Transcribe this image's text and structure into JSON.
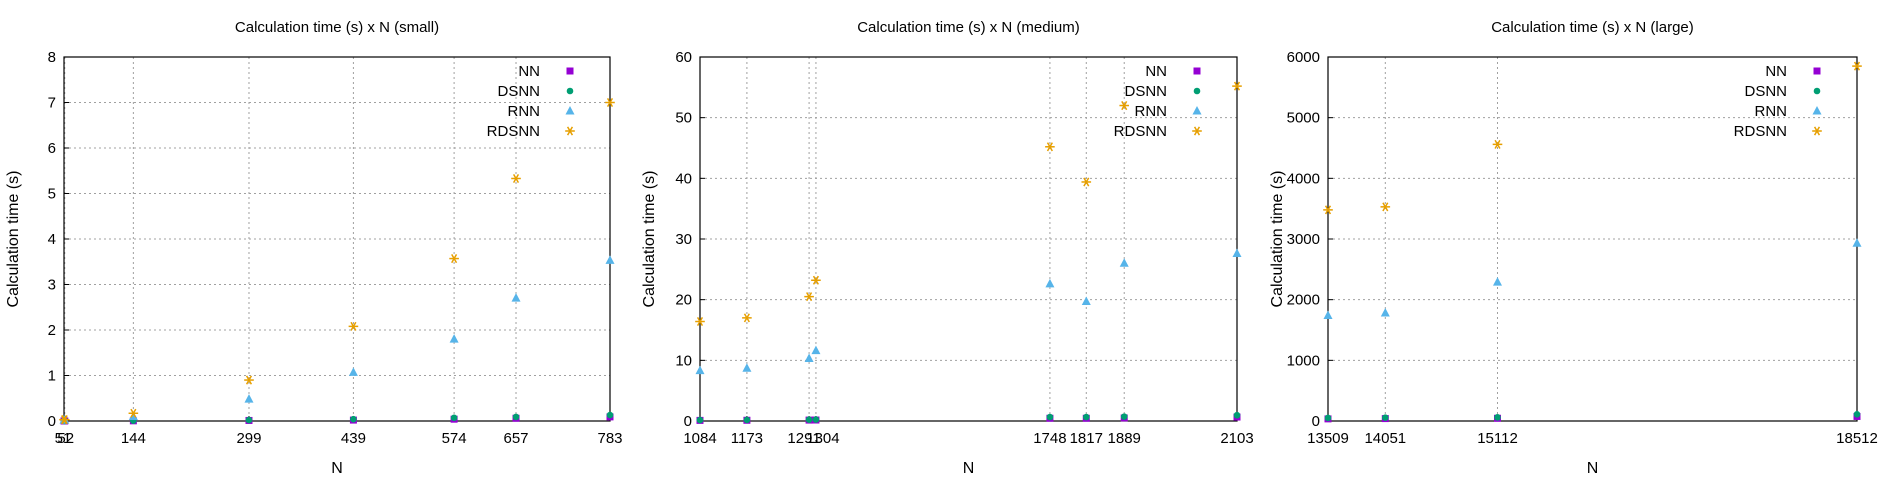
{
  "chart_data": [
    {
      "type": "scatter",
      "title": "Calculation time (s) x N (small)",
      "xlabel": "N",
      "ylabel": "Calculation time (s)",
      "ylim": [
        0,
        8
      ],
      "yticks": [
        0,
        1,
        2,
        3,
        4,
        5,
        6,
        7,
        8
      ],
      "xticks": [
        51,
        52,
        144,
        299,
        439,
        574,
        657,
        783
      ],
      "xlim": [
        51,
        783
      ],
      "grid": true,
      "legend_position": "top-right",
      "series": [
        {
          "name": "NN",
          "marker": "square",
          "color": "#9400d3",
          "x": [
            51,
            52,
            144,
            299,
            439,
            574,
            657,
            783
          ],
          "y": [
            0.001,
            0.001,
            0.004,
            0.012,
            0.02,
            0.04,
            0.06,
            0.09
          ]
        },
        {
          "name": "DSNN",
          "marker": "circle",
          "color": "#009e73",
          "x": [
            51,
            52,
            144,
            299,
            439,
            574,
            657,
            783
          ],
          "y": [
            0.002,
            0.002,
            0.006,
            0.02,
            0.04,
            0.07,
            0.09,
            0.13
          ]
        },
        {
          "name": "RNN",
          "marker": "triangle",
          "color": "#56b4e9",
          "x": [
            51,
            52,
            144,
            299,
            439,
            574,
            657,
            783
          ],
          "y": [
            0.02,
            0.02,
            0.1,
            0.48,
            1.07,
            1.8,
            2.7,
            3.53
          ]
        },
        {
          "name": "RDSNN",
          "marker": "star",
          "color": "#e69f00",
          "x": [
            51,
            52,
            144,
            299,
            439,
            574,
            657,
            783
          ],
          "y": [
            0.03,
            0.03,
            0.17,
            0.9,
            2.08,
            3.57,
            5.33,
            7.0
          ]
        }
      ]
    },
    {
      "type": "scatter",
      "title": "Calculation time (s) x N (medium)",
      "xlabel": "N",
      "ylabel": "Calculation time (s)",
      "ylim": [
        0,
        60
      ],
      "yticks": [
        0,
        10,
        20,
        30,
        40,
        50,
        60
      ],
      "xticks": [
        1084,
        1173,
        1291,
        1304,
        1748,
        1817,
        1889,
        2103
      ],
      "xlim": [
        1084,
        2103
      ],
      "grid": true,
      "legend_position": "top-right",
      "series": [
        {
          "name": "NN",
          "marker": "square",
          "color": "#9400d3",
          "x": [
            1084,
            1173,
            1291,
            1304,
            1748,
            1817,
            1889,
            2103
          ],
          "y": [
            0.1,
            0.12,
            0.15,
            0.16,
            0.45,
            0.45,
            0.5,
            0.65
          ]
        },
        {
          "name": "DSNN",
          "marker": "circle",
          "color": "#009e73",
          "x": [
            1084,
            1173,
            1291,
            1304,
            1748,
            1817,
            1889,
            2103
          ],
          "y": [
            0.15,
            0.18,
            0.22,
            0.24,
            0.65,
            0.65,
            0.72,
            0.95
          ]
        },
        {
          "name": "RNN",
          "marker": "triangle",
          "color": "#56b4e9",
          "x": [
            1084,
            1173,
            1291,
            1304,
            1748,
            1817,
            1889,
            2103
          ],
          "y": [
            8.3,
            8.7,
            10.3,
            11.6,
            22.6,
            19.7,
            26.0,
            27.6
          ]
        },
        {
          "name": "RDSNN",
          "marker": "star",
          "color": "#e69f00",
          "x": [
            1084,
            1173,
            1291,
            1304,
            1748,
            1817,
            1889,
            2103
          ],
          "y": [
            16.4,
            17.0,
            20.5,
            23.2,
            45.2,
            39.4,
            52.0,
            55.2
          ]
        }
      ]
    },
    {
      "type": "scatter",
      "title": "Calculation time (s) x N (large)",
      "xlabel": "N",
      "ylabel": "Calculation time (s)",
      "ylim": [
        0,
        6000
      ],
      "yticks": [
        0,
        1000,
        2000,
        3000,
        4000,
        5000,
        6000
      ],
      "xticks": [
        13509,
        14051,
        15112,
        18512
      ],
      "xlim": [
        13509,
        18512
      ],
      "grid": true,
      "legend_position": "top-right",
      "series": [
        {
          "name": "NN",
          "marker": "square",
          "color": "#9400d3",
          "x": [
            13509,
            14051,
            15112,
            18512
          ],
          "y": [
            35,
            40,
            45,
            75
          ]
        },
        {
          "name": "DSNN",
          "marker": "circle",
          "color": "#009e73",
          "x": [
            13509,
            14051,
            15112,
            18512
          ],
          "y": [
            50,
            55,
            60,
            110
          ]
        },
        {
          "name": "RNN",
          "marker": "triangle",
          "color": "#56b4e9",
          "x": [
            13509,
            14051,
            15112,
            18512
          ],
          "y": [
            1740,
            1780,
            2290,
            2930
          ]
        },
        {
          "name": "RDSNN",
          "marker": "star",
          "color": "#e69f00",
          "x": [
            13509,
            14051,
            15112,
            18512
          ],
          "y": [
            3480,
            3530,
            4560,
            5850
          ]
        }
      ]
    }
  ]
}
